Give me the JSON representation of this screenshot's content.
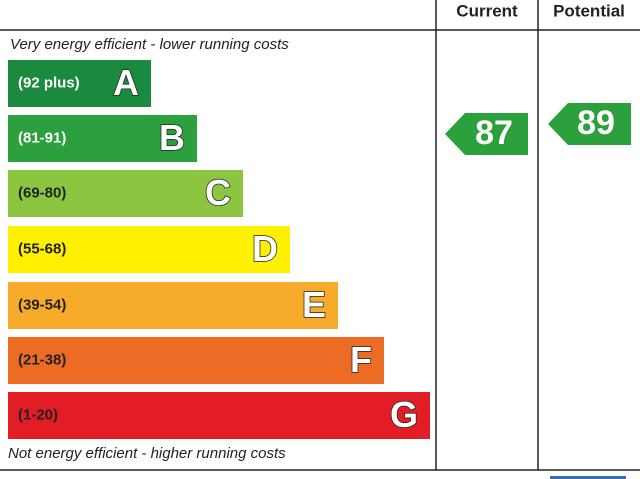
{
  "header": {
    "current": "Current",
    "potential": "Potential"
  },
  "top_note": "Very energy efficient - lower running costs",
  "bottom_note": "Not energy efficient - higher running costs",
  "bands": [
    {
      "range": "(92 plus)",
      "letter": "A",
      "color": "#1b8a3e",
      "text_color": "#ffffff"
    },
    {
      "range": "(81-91)",
      "letter": "B",
      "color": "#2ca03d",
      "text_color": "#ffffff"
    },
    {
      "range": "(69-80)",
      "letter": "C",
      "color": "#8cc53f",
      "text_color": "#222222"
    },
    {
      "range": "(55-68)",
      "letter": "D",
      "color": "#fff000",
      "text_color": "#222222"
    },
    {
      "range": "(39-54)",
      "letter": "E",
      "color": "#f6ab2a",
      "text_color": "#222222"
    },
    {
      "range": "(21-38)",
      "letter": "F",
      "color": "#ec6b25",
      "text_color": "#222222"
    },
    {
      "range": "(1-20)",
      "letter": "G",
      "color": "#e21d26",
      "text_color": "#222222"
    }
  ],
  "current": {
    "value": "87",
    "color": "#2ca03d"
  },
  "potential": {
    "value": "89",
    "color": "#2ca03d"
  }
}
